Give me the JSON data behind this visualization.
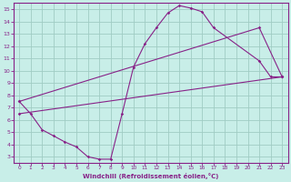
{
  "title": "",
  "xlabel": "Windchill (Refroidissement éolien,°C)",
  "bg_color": "#c8eee8",
  "grid_color": "#a0ccc4",
  "line_color": "#882288",
  "series": [
    {
      "x": [
        0,
        1,
        2,
        3,
        4,
        5,
        6,
        7,
        8,
        9,
        10,
        11,
        12,
        13,
        14,
        15,
        16,
        17,
        21,
        22,
        23
      ],
      "y": [
        7.5,
        6.5,
        5.2,
        4.7,
        4.2,
        3.8,
        3.0,
        2.8,
        2.8,
        6.5,
        10.3,
        12.2,
        13.5,
        14.7,
        15.3,
        15.1,
        14.8,
        13.5,
        10.8,
        9.5,
        9.5
      ]
    },
    {
      "x": [
        0,
        21,
        23
      ],
      "y": [
        7.5,
        13.5,
        9.5
      ]
    },
    {
      "x": [
        0,
        23
      ],
      "y": [
        6.5,
        9.5
      ]
    }
  ],
  "xlim": [
    -0.5,
    23.5
  ],
  "ylim": [
    2.5,
    15.5
  ],
  "xticks": [
    0,
    1,
    2,
    3,
    4,
    5,
    6,
    7,
    8,
    9,
    10,
    11,
    12,
    13,
    14,
    15,
    16,
    17,
    18,
    19,
    20,
    21,
    22,
    23
  ],
  "yticks": [
    3,
    4,
    5,
    6,
    7,
    8,
    9,
    10,
    11,
    12,
    13,
    14,
    15
  ]
}
